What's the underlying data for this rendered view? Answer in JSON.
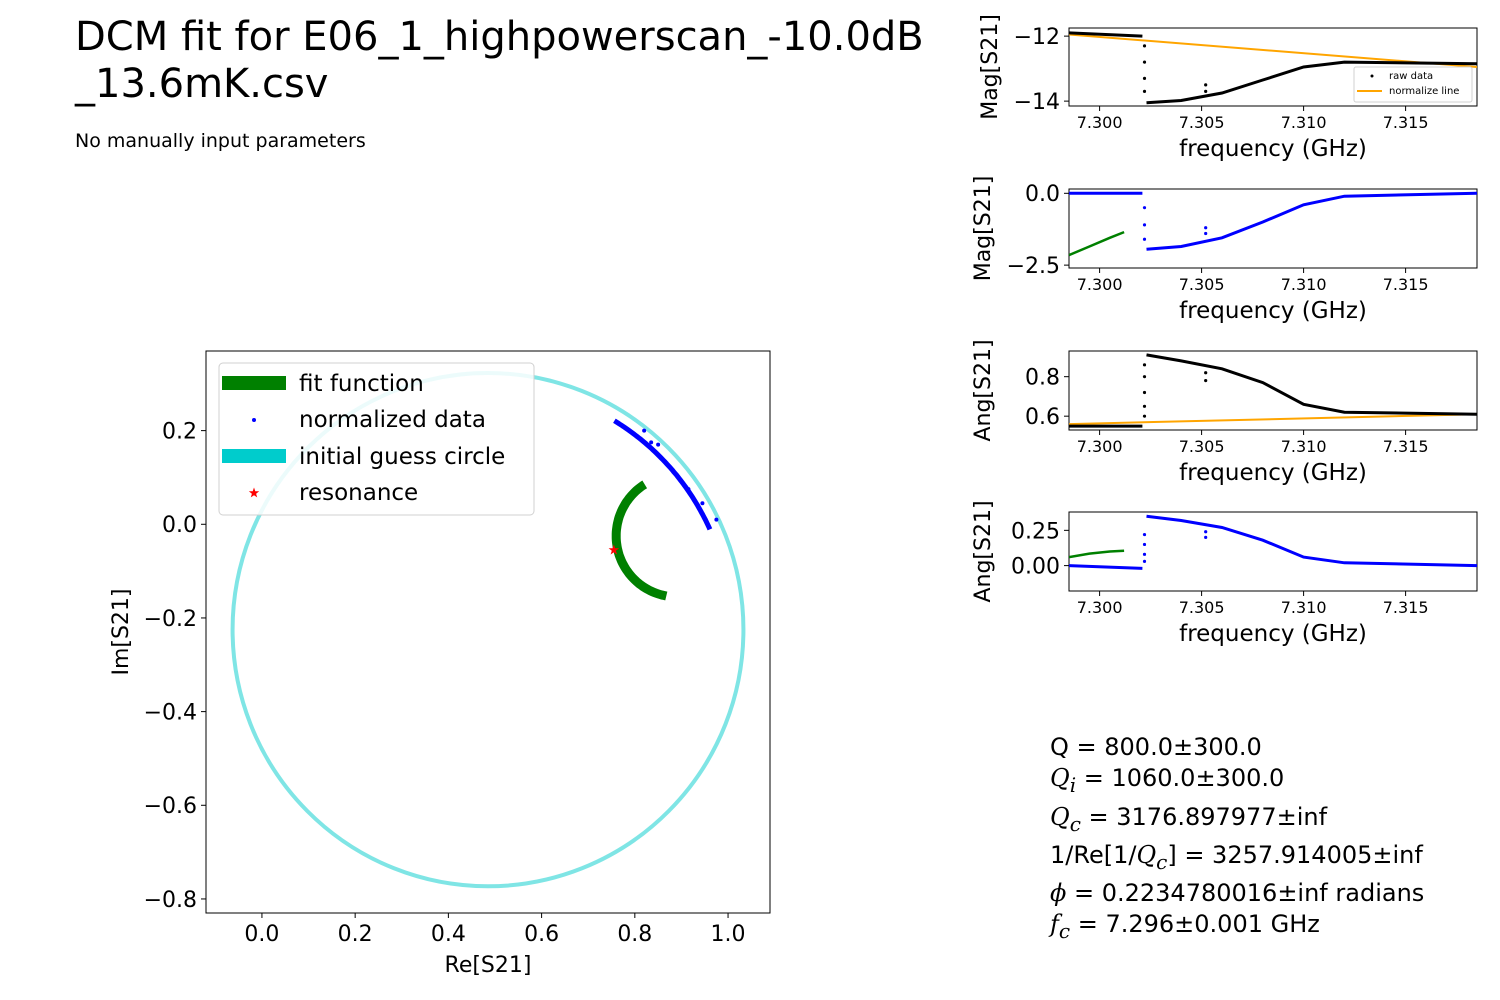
{
  "title_line1": "DCM fit for E06_1_highpowerscan_-10.0dB",
  "title_line2": "_13.6mK.csv",
  "subtitle": "No manually input parameters",
  "colors": {
    "fit": "#008000",
    "data": "#0000ff",
    "raw": "#000000",
    "normalize": "#ffa500",
    "guess": "#00cccc",
    "resonance": "#ff0000"
  },
  "chart_data": [
    {
      "id": "iq",
      "type": "scatter",
      "xlabel": "Re[S21]",
      "ylabel": "Im[S21]",
      "xlim": [
        -0.12,
        1.09
      ],
      "ylim": [
        -0.83,
        0.37
      ],
      "xticks": [
        0.0,
        0.2,
        0.4,
        0.6,
        0.8,
        1.0
      ],
      "yticks": [
        0.2,
        0.0,
        -0.2,
        -0.4,
        -0.6,
        -0.8
      ],
      "xtick_labels": [
        "0.0",
        "0.2",
        "0.4",
        "0.6",
        "0.8",
        "1.0"
      ],
      "ytick_labels": [
        "0.2",
        "0.0",
        "−0.2",
        "−0.4",
        "−0.6",
        "−0.8"
      ],
      "legend": [
        "fit function",
        "normalized data",
        "initial guess circle",
        "resonance"
      ],
      "legend_position": "upper-left",
      "guess_circle": {
        "center": [
          0.485,
          -0.225
        ],
        "radius": 0.548
      },
      "fit_arc": {
        "center": [
          0.89,
          -0.025
        ],
        "radius": 0.13,
        "from_deg": 122,
        "to_deg": 260
      },
      "normalized_data_arc": {
        "center": [
          0.485,
          -0.225
        ],
        "radius": 0.522,
        "from_deg": 58.7,
        "to_deg": 24.0
      },
      "outlier_points": [
        [
          0.82,
          0.2
        ],
        [
          0.835,
          0.175
        ],
        [
          0.85,
          0.17
        ],
        [
          0.915,
          0.075
        ],
        [
          0.945,
          0.045
        ],
        [
          0.975,
          0.01
        ]
      ],
      "resonance": [
        0.755,
        -0.055
      ]
    },
    {
      "id": "raw-mag",
      "type": "line",
      "xlabel": "frequency (GHz)",
      "ylabel": "Mag[S21]",
      "xlim": [
        7.2985,
        7.3185
      ],
      "ylim": [
        -14.15,
        -11.75
      ],
      "xticks": [
        7.3,
        7.305,
        7.31,
        7.315
      ],
      "yticks": [
        -12,
        -14
      ],
      "xtick_labels": [
        "7.300",
        "7.305",
        "7.310",
        "7.315"
      ],
      "ytick_labels": [
        "−12",
        "−14"
      ],
      "legend": [
        "raw data",
        "normalize line"
      ],
      "legend_position": "lower-right",
      "raw_series": [
        [
          7.2985,
          -11.9
        ],
        [
          7.3021,
          -12.0
        ],
        [
          7.3023,
          -14.05
        ],
        [
          7.304,
          -13.98
        ],
        [
          7.306,
          -13.75
        ],
        [
          7.308,
          -13.35
        ],
        [
          7.31,
          -12.95
        ],
        [
          7.312,
          -12.8
        ],
        [
          7.3185,
          -12.85
        ]
      ],
      "raw_scatter": [
        [
          7.3022,
          -12.3
        ],
        [
          7.3022,
          -12.8
        ],
        [
          7.3022,
          -13.3
        ],
        [
          7.3022,
          -13.7
        ],
        [
          7.3052,
          -13.5
        ],
        [
          7.3052,
          -13.7
        ]
      ],
      "normalize_line": [
        [
          7.2985,
          -11.95
        ],
        [
          7.3185,
          -12.95
        ]
      ]
    },
    {
      "id": "norm-mag",
      "type": "line",
      "xlabel": "frequency (GHz)",
      "ylabel": "Mag[S21]",
      "xlim": [
        7.2985,
        7.3185
      ],
      "ylim": [
        -2.6,
        0.15
      ],
      "xticks": [
        7.3,
        7.305,
        7.31,
        7.315
      ],
      "yticks": [
        0.0,
        -2.5
      ],
      "xtick_labels": [
        "7.300",
        "7.305",
        "7.310",
        "7.315"
      ],
      "ytick_labels": [
        "0.0",
        "−2.5"
      ],
      "data_series": [
        [
          7.2985,
          0.0
        ],
        [
          7.3021,
          0.0
        ],
        [
          7.3023,
          -1.95
        ],
        [
          7.304,
          -1.85
        ],
        [
          7.306,
          -1.55
        ],
        [
          7.308,
          -1.0
        ],
        [
          7.31,
          -0.4
        ],
        [
          7.312,
          -0.1
        ],
        [
          7.3185,
          0.0
        ]
      ],
      "data_scatter": [
        [
          7.3022,
          -0.5
        ],
        [
          7.3022,
          -1.1
        ],
        [
          7.3022,
          -1.6
        ],
        [
          7.3052,
          -1.2
        ],
        [
          7.3052,
          -1.4
        ]
      ],
      "fit_series": [
        [
          7.2985,
          -2.15
        ],
        [
          7.2995,
          -1.85
        ],
        [
          7.3005,
          -1.55
        ],
        [
          7.3012,
          -1.35
        ]
      ]
    },
    {
      "id": "raw-ang",
      "type": "line",
      "xlabel": "frequency (GHz)",
      "ylabel": "Ang[S21]",
      "xlim": [
        7.2985,
        7.3185
      ],
      "ylim": [
        0.53,
        0.93
      ],
      "xticks": [
        7.3,
        7.305,
        7.31,
        7.315
      ],
      "yticks": [
        0.8,
        0.6
      ],
      "xtick_labels": [
        "7.300",
        "7.305",
        "7.310",
        "7.315"
      ],
      "ytick_labels": [
        "0.8",
        "0.6"
      ],
      "raw_series": [
        [
          7.2985,
          0.55
        ],
        [
          7.3021,
          0.55
        ],
        [
          7.3023,
          0.91
        ],
        [
          7.304,
          0.88
        ],
        [
          7.306,
          0.84
        ],
        [
          7.308,
          0.77
        ],
        [
          7.31,
          0.66
        ],
        [
          7.312,
          0.62
        ],
        [
          7.3185,
          0.61
        ]
      ],
      "raw_scatter": [
        [
          7.3022,
          0.6
        ],
        [
          7.3022,
          0.65
        ],
        [
          7.3022,
          0.72
        ],
        [
          7.3022,
          0.8
        ],
        [
          7.3022,
          0.86
        ],
        [
          7.3052,
          0.78
        ],
        [
          7.3052,
          0.82
        ]
      ],
      "normalize_line": [
        [
          7.2985,
          0.56
        ],
        [
          7.3185,
          0.61
        ]
      ]
    },
    {
      "id": "norm-ang",
      "type": "line",
      "xlabel": "frequency (GHz)",
      "ylabel": "Ang[S21]",
      "xlim": [
        7.2985,
        7.3185
      ],
      "ylim": [
        -0.18,
        0.38
      ],
      "xticks": [
        7.3,
        7.305,
        7.31,
        7.315
      ],
      "yticks": [
        0.25,
        0.0
      ],
      "xtick_labels": [
        "7.300",
        "7.305",
        "7.310",
        "7.315"
      ],
      "ytick_labels": [
        "0.25",
        "0.00"
      ],
      "data_series": [
        [
          7.2985,
          0.0
        ],
        [
          7.3021,
          -0.02
        ],
        [
          7.3023,
          0.35
        ],
        [
          7.304,
          0.32
        ],
        [
          7.306,
          0.27
        ],
        [
          7.308,
          0.18
        ],
        [
          7.31,
          0.06
        ],
        [
          7.312,
          0.02
        ],
        [
          7.3185,
          0.0
        ]
      ],
      "data_scatter": [
        [
          7.3022,
          0.03
        ],
        [
          7.3022,
          0.08
        ],
        [
          7.3022,
          0.15
        ],
        [
          7.3022,
          0.22
        ],
        [
          7.3052,
          0.2
        ],
        [
          7.3052,
          0.24
        ]
      ],
      "fit_series": [
        [
          7.2985,
          0.06
        ],
        [
          7.2995,
          0.085
        ],
        [
          7.3005,
          0.1
        ],
        [
          7.3012,
          0.105
        ]
      ]
    }
  ],
  "stats": {
    "q_label": "Q",
    "q_value": " = 800.0±300.0",
    "qi_label": "Q",
    "qi_sub": "i",
    "qi_value": " = 1060.0±300.0",
    "qc_label": "Q",
    "qc_sub": "c",
    "qc_value": " = 3176.897977±inf",
    "reqc_prefix": "1/Re[1/",
    "reqc_label": "Q",
    "reqc_sub": "c",
    "reqc_value": "] = 3257.914005±inf",
    "phi_label": "ϕ",
    "phi_value": " = 0.2234780016±inf radians",
    "fc_label": "f",
    "fc_sub": "c",
    "fc_value": " = 7.296±0.001 GHz"
  }
}
